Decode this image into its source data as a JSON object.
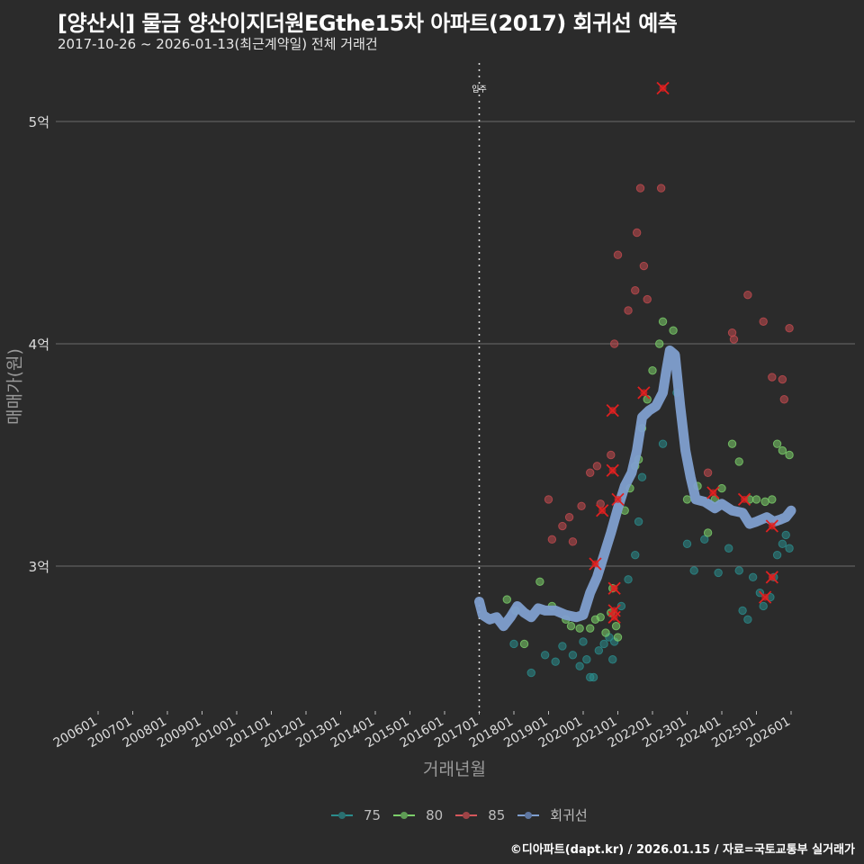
{
  "header": {
    "title": "[양산시] 물금 양산이지더원EGthe15차 아파트(2017) 회귀선 예측",
    "subtitle": "2017-10-26 ~ 2026-01-13(최근계약일) 전체 거래건"
  },
  "footer": {
    "credit": "©디아파트(dapt.kr) / 2026.01.15 / 자료=국토교통부 실거래가"
  },
  "colors": {
    "background": "#2b2b2b",
    "grid": "#6b6b6b",
    "s75": "#2a8c8c",
    "s80": "#7ccf6a",
    "s85": "#c24a4f",
    "regression": "#7f9fcf",
    "cancel_marker": "#e02020"
  },
  "chart_data": {
    "type": "scatter",
    "title": "[양산시] 물금 양산이지더원EGthe15차 아파트(2017) 회귀선 예측",
    "subtitle": "2017-10-26 ~ 2026-01-13(최근계약일) 전체 거래건",
    "xlabel": "거래년월",
    "ylabel": "매매가(원)",
    "x_ticks": [
      "200601",
      "200701",
      "200801",
      "200901",
      "201001",
      "201101",
      "201201",
      "201301",
      "201401",
      "201501",
      "201601",
      "201701",
      "201801",
      "201901",
      "202001",
      "202101",
      "202201",
      "202301",
      "202401",
      "202501",
      "202601"
    ],
    "y_ticks": [
      {
        "value": 3.0,
        "label": "3억"
      },
      {
        "value": 4.0,
        "label": "4억"
      },
      {
        "value": 5.0,
        "label": "5억"
      }
    ],
    "ylim": [
      2.4,
      5.25
    ],
    "xlim": [
      2005.7,
      2026.1
    ],
    "grid": "horizontal major lines",
    "annotation": {
      "x": 2017.0,
      "label": "입주",
      "style": "dotted vertical line"
    },
    "legend": {
      "position": "bottom",
      "entries": [
        "75",
        "80",
        "85",
        "회귀선"
      ]
    },
    "units": "억원",
    "series": [
      {
        "name": "75",
        "points": [
          [
            2018.0,
            2.65
          ],
          [
            2018.5,
            2.52
          ],
          [
            2018.9,
            2.6
          ],
          [
            2019.2,
            2.57
          ],
          [
            2019.4,
            2.64
          ],
          [
            2019.7,
            2.6
          ],
          [
            2019.9,
            2.55
          ],
          [
            2020.0,
            2.66
          ],
          [
            2020.1,
            2.58
          ],
          [
            2020.2,
            2.5
          ],
          [
            2020.3,
            2.5
          ],
          [
            2020.45,
            2.62
          ],
          [
            2020.6,
            2.65
          ],
          [
            2020.75,
            2.68
          ],
          [
            2020.85,
            2.58
          ],
          [
            2020.9,
            2.66
          ],
          [
            2021.1,
            2.82
          ],
          [
            2021.3,
            2.94
          ],
          [
            2021.5,
            3.05
          ],
          [
            2021.6,
            3.2
          ],
          [
            2021.7,
            3.4
          ],
          [
            2022.3,
            3.55
          ],
          [
            2022.7,
            3.78
          ],
          [
            2023.0,
            3.1
          ],
          [
            2023.2,
            2.98
          ],
          [
            2023.5,
            3.12
          ],
          [
            2023.9,
            2.97
          ],
          [
            2024.2,
            3.08
          ],
          [
            2024.5,
            2.98
          ],
          [
            2024.6,
            2.8
          ],
          [
            2024.75,
            2.76
          ],
          [
            2024.9,
            2.95
          ],
          [
            2025.1,
            2.88
          ],
          [
            2025.2,
            2.82
          ],
          [
            2025.4,
            2.86
          ],
          [
            2025.5,
            2.95
          ],
          [
            2025.6,
            3.05
          ],
          [
            2025.75,
            3.1
          ],
          [
            2025.85,
            3.14
          ],
          [
            2025.95,
            3.08
          ]
        ]
      },
      {
        "name": "80",
        "points": [
          [
            2017.8,
            2.85
          ],
          [
            2018.05,
            2.8
          ],
          [
            2018.3,
            2.65
          ],
          [
            2018.75,
            2.93
          ],
          [
            2019.1,
            2.82
          ],
          [
            2019.5,
            2.76
          ],
          [
            2019.65,
            2.73
          ],
          [
            2019.9,
            2.72
          ],
          [
            2020.2,
            2.72
          ],
          [
            2020.35,
            2.76
          ],
          [
            2020.5,
            2.77
          ],
          [
            2020.65,
            2.7
          ],
          [
            2020.8,
            2.79
          ],
          [
            2020.85,
            2.9
          ],
          [
            2020.95,
            2.73
          ],
          [
            2021.0,
            2.68
          ],
          [
            2021.2,
            3.25
          ],
          [
            2021.35,
            3.35
          ],
          [
            2021.5,
            3.45
          ],
          [
            2021.6,
            3.48
          ],
          [
            2021.7,
            3.62
          ],
          [
            2021.85,
            3.75
          ],
          [
            2022.0,
            3.88
          ],
          [
            2022.2,
            4.0
          ],
          [
            2022.3,
            4.1
          ],
          [
            2022.6,
            4.06
          ],
          [
            2023.0,
            3.3
          ],
          [
            2023.3,
            3.36
          ],
          [
            2023.6,
            3.15
          ],
          [
            2023.8,
            3.3
          ],
          [
            2024.0,
            3.35
          ],
          [
            2024.3,
            3.55
          ],
          [
            2024.5,
            3.47
          ],
          [
            2024.8,
            3.3
          ],
          [
            2025.0,
            3.3
          ],
          [
            2025.25,
            3.29
          ],
          [
            2025.45,
            3.3
          ],
          [
            2025.6,
            3.55
          ],
          [
            2025.75,
            3.52
          ],
          [
            2025.95,
            3.5
          ]
        ]
      },
      {
        "name": "85",
        "points": [
          [
            2019.0,
            3.3
          ],
          [
            2019.1,
            3.12
          ],
          [
            2019.4,
            3.18
          ],
          [
            2019.6,
            3.22
          ],
          [
            2019.7,
            3.11
          ],
          [
            2019.95,
            3.27
          ],
          [
            2020.2,
            3.42
          ],
          [
            2020.4,
            3.45
          ],
          [
            2020.5,
            3.28
          ],
          [
            2020.8,
            3.5
          ],
          [
            2020.9,
            4.0
          ],
          [
            2021.0,
            4.4
          ],
          [
            2021.3,
            4.15
          ],
          [
            2021.5,
            4.24
          ],
          [
            2021.55,
            4.5
          ],
          [
            2021.65,
            4.7
          ],
          [
            2021.75,
            4.35
          ],
          [
            2021.85,
            4.2
          ],
          [
            2022.25,
            4.7
          ],
          [
            2023.6,
            3.42
          ],
          [
            2024.3,
            4.05
          ],
          [
            2024.35,
            4.02
          ],
          [
            2024.75,
            4.22
          ],
          [
            2025.2,
            4.1
          ],
          [
            2025.45,
            3.85
          ],
          [
            2025.75,
            3.84
          ],
          [
            2025.8,
            3.75
          ],
          [
            2025.95,
            4.07
          ],
          [
            2025.6,
            3.2
          ]
        ]
      },
      {
        "name": "회귀선",
        "points": [
          [
            2017.0,
            2.84
          ],
          [
            2017.1,
            2.78
          ],
          [
            2017.3,
            2.76
          ],
          [
            2017.5,
            2.77
          ],
          [
            2017.7,
            2.73
          ],
          [
            2017.9,
            2.77
          ],
          [
            2018.1,
            2.82
          ],
          [
            2018.3,
            2.79
          ],
          [
            2018.5,
            2.77
          ],
          [
            2018.7,
            2.81
          ],
          [
            2018.9,
            2.8
          ],
          [
            2019.2,
            2.8
          ],
          [
            2019.5,
            2.78
          ],
          [
            2019.8,
            2.77
          ],
          [
            2020.0,
            2.78
          ],
          [
            2020.2,
            2.88
          ],
          [
            2020.4,
            2.95
          ],
          [
            2020.6,
            3.05
          ],
          [
            2020.8,
            3.15
          ],
          [
            2021.0,
            3.26
          ],
          [
            2021.2,
            3.36
          ],
          [
            2021.4,
            3.42
          ],
          [
            2021.55,
            3.52
          ],
          [
            2021.7,
            3.67
          ],
          [
            2021.9,
            3.7
          ],
          [
            2022.1,
            3.72
          ],
          [
            2022.3,
            3.78
          ],
          [
            2022.4,
            3.88
          ],
          [
            2022.5,
            3.97
          ],
          [
            2022.65,
            3.95
          ],
          [
            2022.8,
            3.72
          ],
          [
            2022.95,
            3.52
          ],
          [
            2023.1,
            3.4
          ],
          [
            2023.25,
            3.3
          ],
          [
            2023.5,
            3.29
          ],
          [
            2023.8,
            3.26
          ],
          [
            2024.0,
            3.28
          ],
          [
            2024.3,
            3.25
          ],
          [
            2024.6,
            3.24
          ],
          [
            2024.8,
            3.19
          ],
          [
            2025.0,
            3.2
          ],
          [
            2025.3,
            3.22
          ],
          [
            2025.5,
            3.2
          ],
          [
            2025.7,
            3.21
          ],
          [
            2025.85,
            3.22
          ],
          [
            2026.0,
            3.25
          ]
        ]
      }
    ],
    "cancelled_deals": [
      [
        2022.3,
        5.15
      ],
      [
        2020.85,
        3.7
      ],
      [
        2021.75,
        3.78
      ],
      [
        2020.85,
        3.43
      ],
      [
        2020.55,
        3.25
      ],
      [
        2020.35,
        3.01
      ],
      [
        2020.9,
        2.9
      ],
      [
        2020.9,
        2.8
      ],
      [
        2020.9,
        2.77
      ],
      [
        2023.75,
        3.33
      ],
      [
        2024.65,
        3.3
      ],
      [
        2025.45,
        3.18
      ],
      [
        2025.45,
        2.95
      ],
      [
        2025.25,
        2.86
      ],
      [
        2021.0,
        3.3
      ]
    ]
  },
  "axis_labels": {
    "y": "매매가(원)",
    "x": "거래년월",
    "annotation": "입주"
  },
  "legend": [
    {
      "label": "75",
      "color": "#2a8c8c"
    },
    {
      "label": "80",
      "color": "#7ccf6a"
    },
    {
      "label": "85",
      "color": "#c24a4f"
    },
    {
      "label": "회귀선",
      "color": "#7f9fcf"
    }
  ]
}
